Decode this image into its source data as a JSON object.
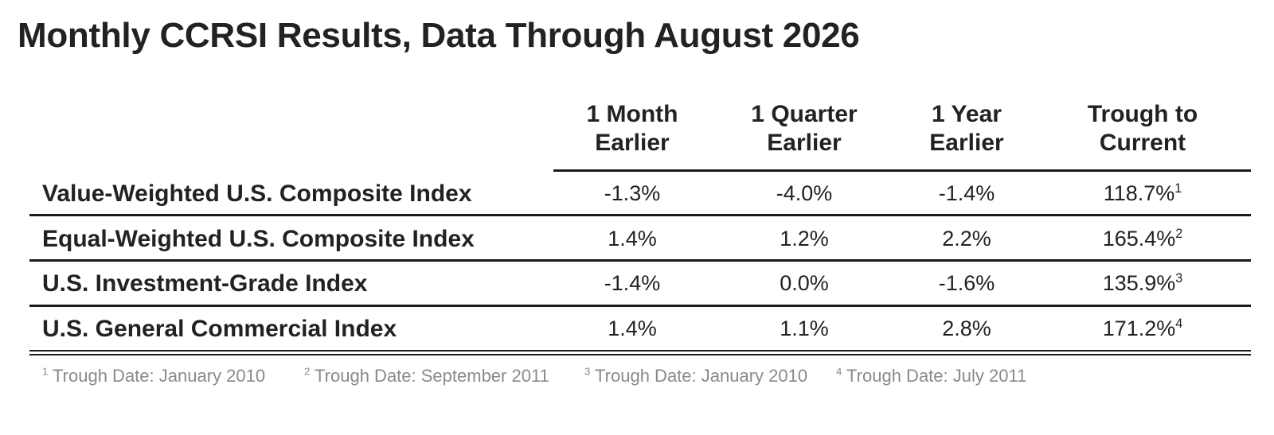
{
  "title": "Monthly CCRSI Results, Data Through August 2026",
  "columns": [
    {
      "line1": "1 Month",
      "line2": "Earlier"
    },
    {
      "line1": "1 Quarter",
      "line2": "Earlier"
    },
    {
      "line1": "1 Year",
      "line2": "Earlier"
    },
    {
      "line1": "Trough to",
      "line2": "Current"
    }
  ],
  "rows": [
    {
      "label": "Value-Weighted U.S. Composite Index",
      "month": "-1.3%",
      "quarter": "-4.0%",
      "year": "-1.4%",
      "trough": "118.7%",
      "note": "1"
    },
    {
      "label": "Equal-Weighted U.S. Composite Index",
      "month": "1.4%",
      "quarter": "1.2%",
      "year": "2.2%",
      "trough": "165.4%",
      "note": "2"
    },
    {
      "label": "U.S. Investment-Grade Index",
      "month": "-1.4%",
      "quarter": "0.0%",
      "year": "-1.6%",
      "trough": "135.9%",
      "note": "3"
    },
    {
      "label": "U.S. General Commercial Index",
      "month": "1.4%",
      "quarter": "1.1%",
      "year": "2.8%",
      "trough": "171.2%",
      "note": "4"
    }
  ],
  "footnotes": [
    {
      "mark": "1",
      "text": " Trough Date: January 2010"
    },
    {
      "mark": "2",
      "text": " Trough Date: September 2011"
    },
    {
      "mark": "3",
      "text": " Trough Date: January 2010"
    },
    {
      "mark": "4",
      "text": " Trough Date: July 2011"
    }
  ]
}
